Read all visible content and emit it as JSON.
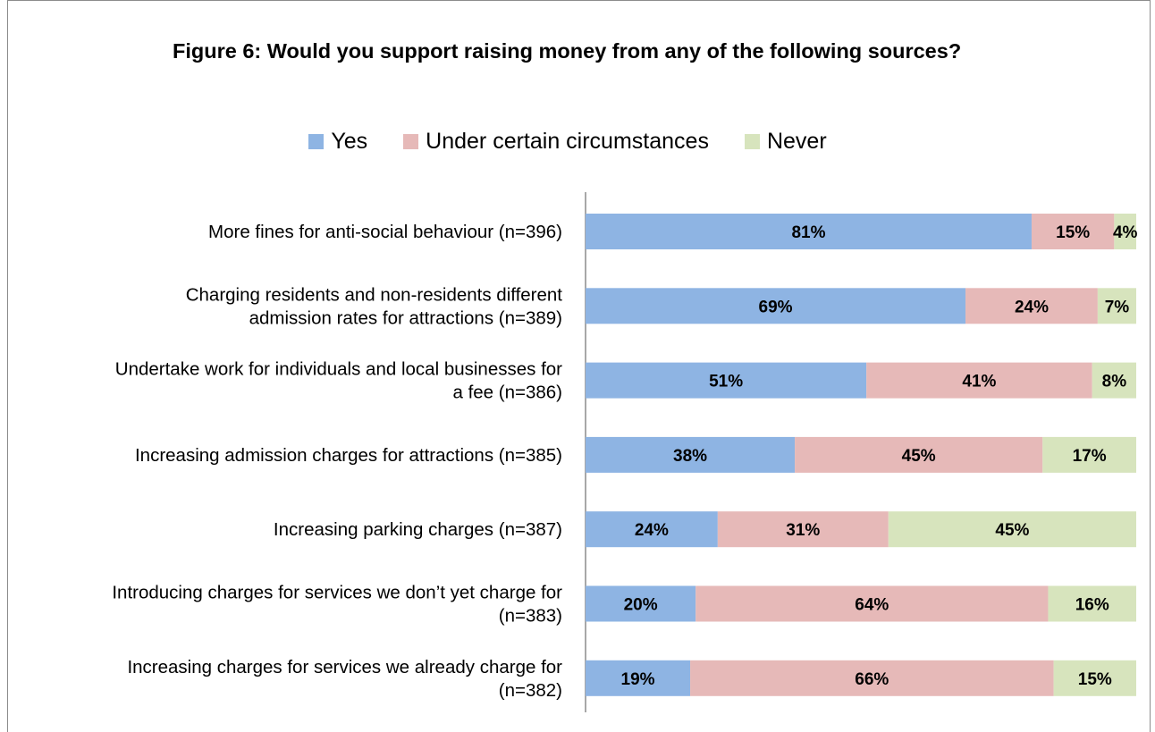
{
  "chart_data": {
    "type": "bar",
    "orientation": "horizontal",
    "stacked": true,
    "title": "Figure 6:  Would you support raising money from any of the following sources?",
    "categories": [
      "More fines for anti-social behaviour (n=396)",
      "Charging residents and non-residents different admission rates for attractions (n=389)",
      "Undertake work for individuals and local businesses for a fee (n=386)",
      "Increasing admission charges for attractions (n=385)",
      "Increasing parking charges (n=387)",
      "Introducing charges for services we don’t yet charge for (n=383)",
      "Increasing charges for services we already charge for (n=382)"
    ],
    "series": [
      {
        "name": "Yes",
        "color": "#8eb4e3",
        "values": [
          81,
          69,
          51,
          38,
          24,
          20,
          19
        ],
        "labels": [
          "81%",
          "69%",
          "51%",
          "38%",
          "24%",
          "20%",
          "19%"
        ]
      },
      {
        "name": "Under certain circumstances",
        "color": "#e6b9b8",
        "values": [
          15,
          24,
          41,
          45,
          31,
          64,
          66
        ],
        "labels": [
          "15%",
          "24%",
          "41%",
          "45%",
          "31%",
          "64%",
          "66%"
        ]
      },
      {
        "name": "Never",
        "color": "#d7e4bd",
        "values": [
          4,
          7,
          8,
          17,
          45,
          16,
          15
        ],
        "labels": [
          "4%",
          "7%",
          "8%",
          "17%",
          "45%",
          "16%",
          "15%"
        ]
      }
    ],
    "xlim": [
      0,
      100
    ],
    "legend_position": "top",
    "grid": false
  }
}
